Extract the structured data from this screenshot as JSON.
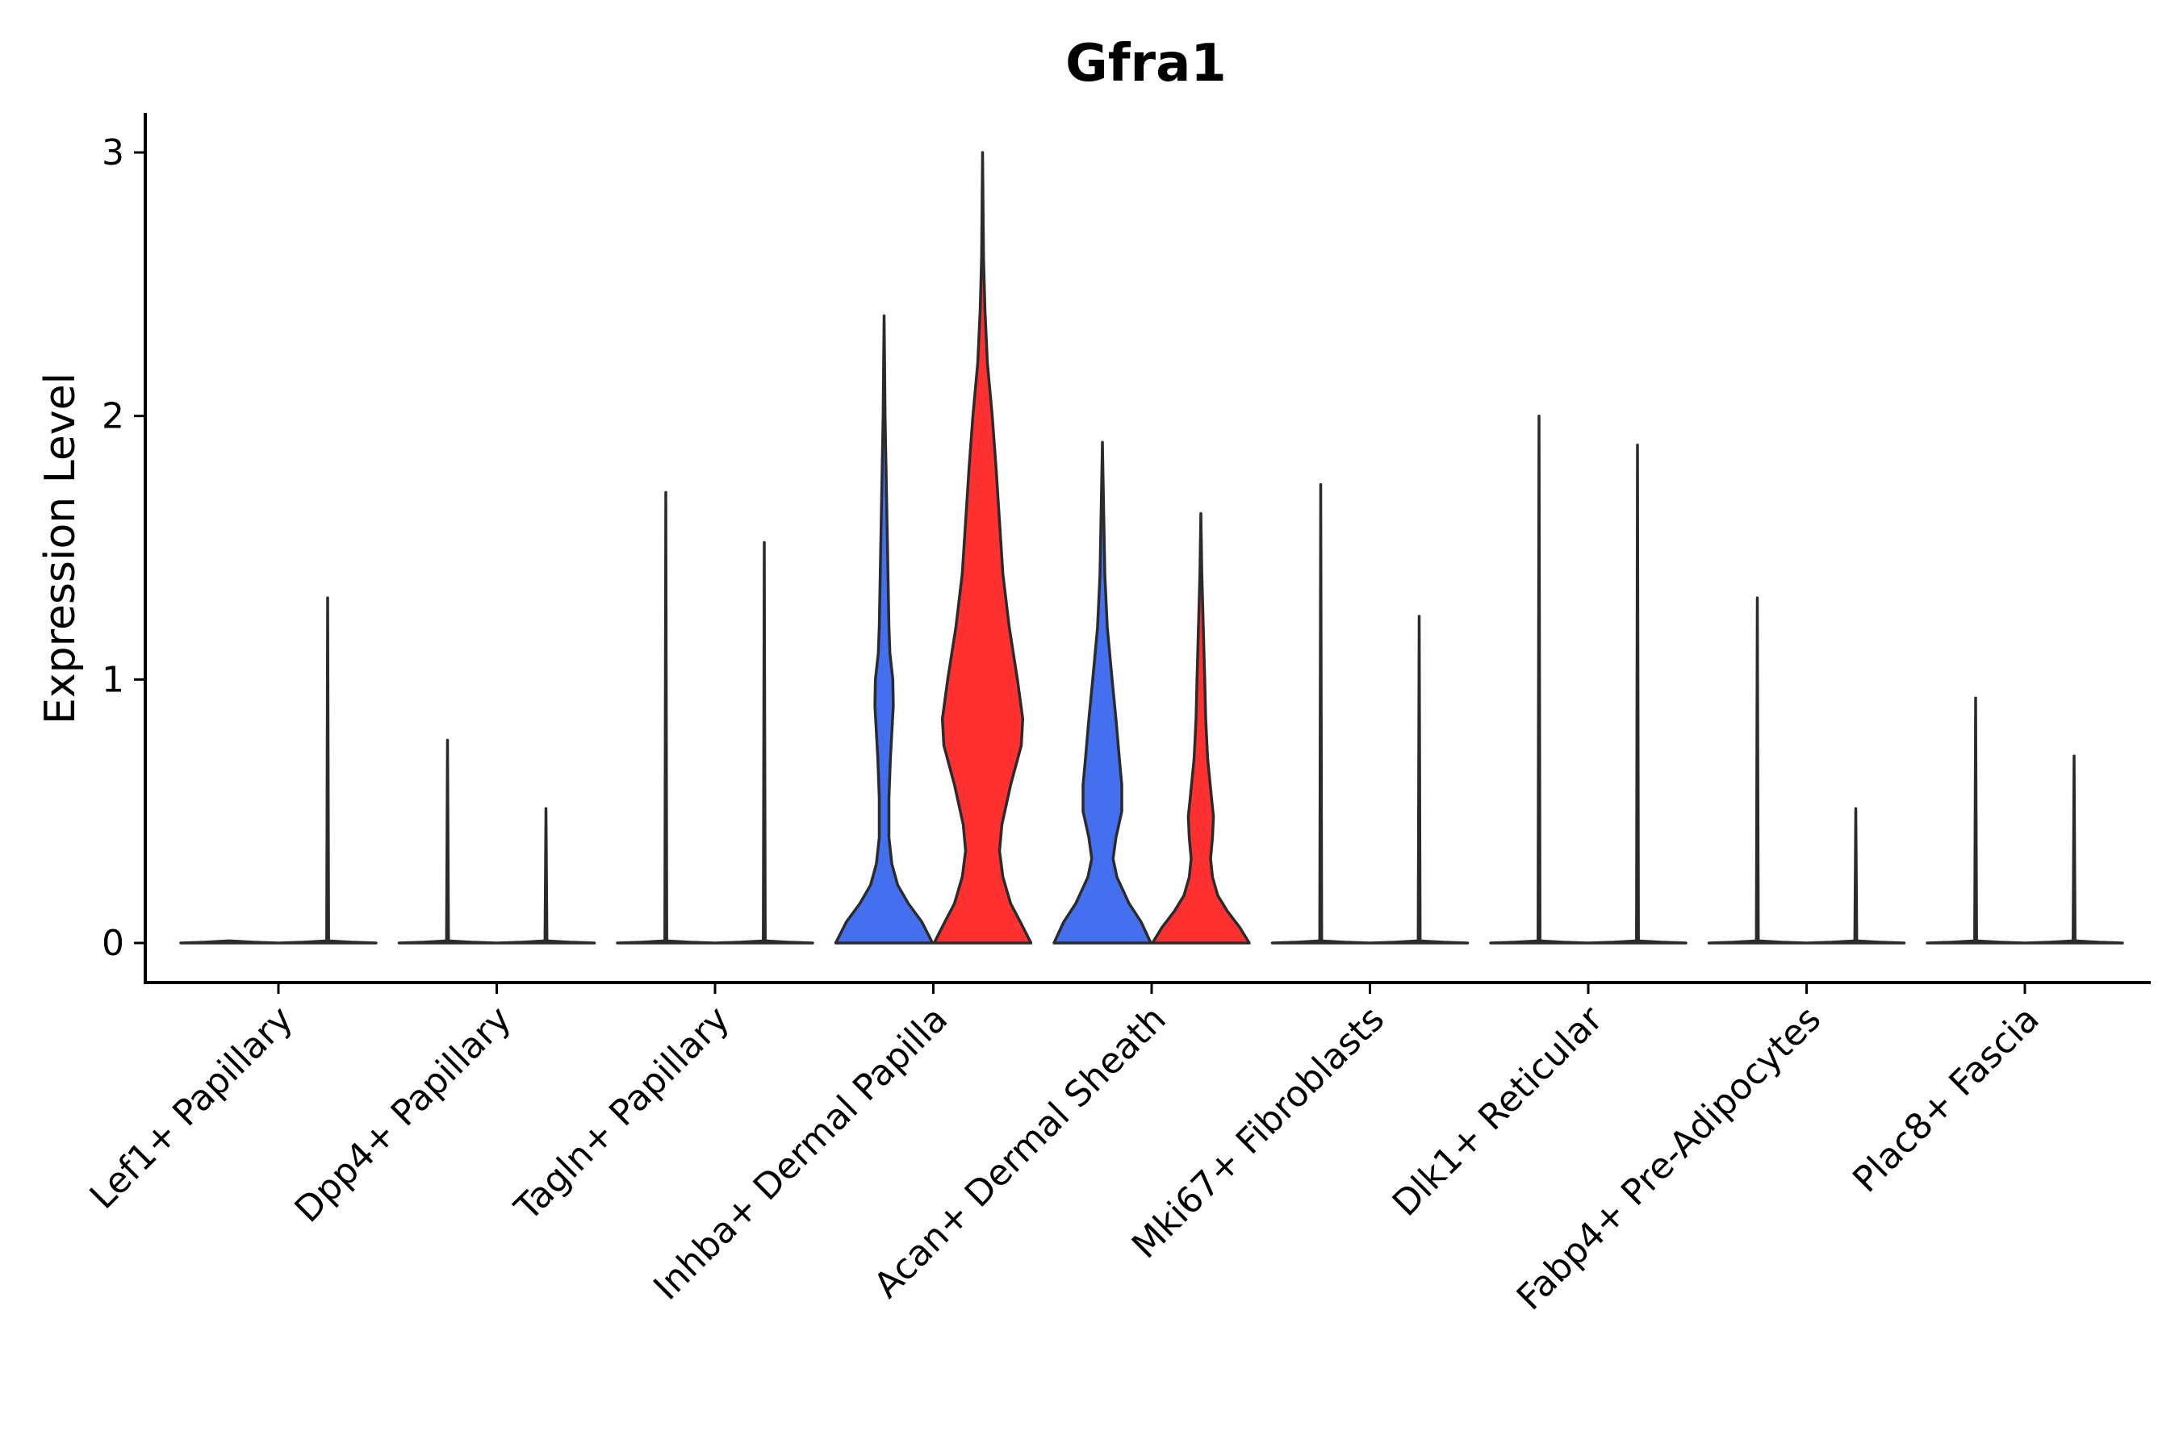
{
  "chart_data": {
    "type": "violin",
    "title": "Gfra1",
    "xlabel": "",
    "ylabel": "Expression Level",
    "ylim": [
      -0.15,
      3.15
    ],
    "yticks": [
      0,
      1,
      2,
      3
    ],
    "grid": false,
    "legend": "none",
    "colors": {
      "blue": "#4470f0",
      "red": "#ff3030",
      "flat": "#ffffff",
      "outline": "#2b2b2b"
    },
    "categories": [
      "Lef1+ Papillary",
      "Dpp4+ Papillary",
      "Tagln+ Papillary",
      "Inhba+ Dermal Papilla",
      "Acan+ Dermal Sheath",
      "Mki67+ Fibroblasts",
      "Dlk1+ Reticular",
      "Fabp4+ Pre-Adipocytes",
      "Plac8+ Fascia"
    ],
    "groups": [
      {
        "category": "Lef1+ Papillary",
        "violins": [
          {
            "max": 0.0,
            "style": "flat"
          },
          {
            "max": 1.31,
            "style": "spike"
          }
        ]
      },
      {
        "category": "Dpp4+ Papillary",
        "violins": [
          {
            "max": 0.77,
            "style": "spike"
          },
          {
            "max": 0.51,
            "style": "spike"
          }
        ]
      },
      {
        "category": "Tagln+ Papillary",
        "violins": [
          {
            "max": 1.71,
            "style": "spike"
          },
          {
            "max": 1.52,
            "style": "spike"
          }
        ]
      },
      {
        "category": "Inhba+ Dermal Papilla",
        "violins": [
          {
            "max": 2.38,
            "style": "blue",
            "profile": [
              [
                0,
                1.0
              ],
              [
                0.08,
                0.78
              ],
              [
                0.15,
                0.5
              ],
              [
                0.22,
                0.28
              ],
              [
                0.3,
                0.16
              ],
              [
                0.4,
                0.1
              ],
              [
                0.55,
                0.1
              ],
              [
                0.7,
                0.13
              ],
              [
                0.8,
                0.16
              ],
              [
                0.9,
                0.19
              ],
              [
                1.0,
                0.18
              ],
              [
                1.1,
                0.12
              ],
              [
                1.2,
                0.1
              ],
              [
                1.4,
                0.08
              ],
              [
                1.6,
                0.06
              ],
              [
                1.8,
                0.04
              ],
              [
                2.0,
                0.02
              ],
              [
                2.2,
                0.01
              ],
              [
                2.38,
                0.0
              ]
            ]
          },
          {
            "max": 3.0,
            "style": "red",
            "profile": [
              [
                0,
                1.0
              ],
              [
                0.08,
                0.78
              ],
              [
                0.15,
                0.58
              ],
              [
                0.25,
                0.42
              ],
              [
                0.35,
                0.35
              ],
              [
                0.45,
                0.4
              ],
              [
                0.6,
                0.58
              ],
              [
                0.75,
                0.8
              ],
              [
                0.85,
                0.83
              ],
              [
                1.0,
                0.72
              ],
              [
                1.2,
                0.55
              ],
              [
                1.4,
                0.42
              ],
              [
                1.6,
                0.35
              ],
              [
                1.8,
                0.28
              ],
              [
                2.0,
                0.2
              ],
              [
                2.2,
                0.1
              ],
              [
                2.4,
                0.05
              ],
              [
                2.6,
                0.02
              ],
              [
                3.0,
                0.0
              ]
            ]
          }
        ]
      },
      {
        "category": "Acan+ Dermal Sheath",
        "violins": [
          {
            "max": 1.9,
            "style": "blue",
            "profile": [
              [
                0,
                1.0
              ],
              [
                0.08,
                0.8
              ],
              [
                0.15,
                0.55
              ],
              [
                0.25,
                0.3
              ],
              [
                0.32,
                0.22
              ],
              [
                0.4,
                0.28
              ],
              [
                0.5,
                0.4
              ],
              [
                0.6,
                0.4
              ],
              [
                0.7,
                0.35
              ],
              [
                0.85,
                0.28
              ],
              [
                1.0,
                0.2
              ],
              [
                1.2,
                0.1
              ],
              [
                1.4,
                0.05
              ],
              [
                1.6,
                0.03
              ],
              [
                1.9,
                0.0
              ]
            ]
          },
          {
            "max": 1.63,
            "style": "red",
            "profile": [
              [
                0,
                1.0
              ],
              [
                0.06,
                0.8
              ],
              [
                0.12,
                0.55
              ],
              [
                0.18,
                0.35
              ],
              [
                0.25,
                0.24
              ],
              [
                0.32,
                0.2
              ],
              [
                0.4,
                0.24
              ],
              [
                0.48,
                0.26
              ],
              [
                0.55,
                0.22
              ],
              [
                0.7,
                0.14
              ],
              [
                0.85,
                0.1
              ],
              [
                1.0,
                0.08
              ],
              [
                1.2,
                0.05
              ],
              [
                1.4,
                0.02
              ],
              [
                1.63,
                0.0
              ]
            ]
          }
        ]
      },
      {
        "category": "Mki67+ Fibroblasts",
        "violins": [
          {
            "max": 1.74,
            "style": "spike"
          },
          {
            "max": 1.24,
            "style": "spike"
          }
        ]
      },
      {
        "category": "Dlk1+ Reticular",
        "violins": [
          {
            "max": 2.0,
            "style": "spike"
          },
          {
            "max": 1.89,
            "style": "spike"
          }
        ]
      },
      {
        "category": "Fabp4+ Pre-Adipocytes",
        "violins": [
          {
            "max": 1.31,
            "style": "spike"
          },
          {
            "max": 0.51,
            "style": "spike"
          }
        ]
      },
      {
        "category": "Plac8+ Fascia",
        "violins": [
          {
            "max": 0.93,
            "style": "spike"
          },
          {
            "max": 0.71,
            "style": "spike"
          }
        ]
      }
    ]
  }
}
